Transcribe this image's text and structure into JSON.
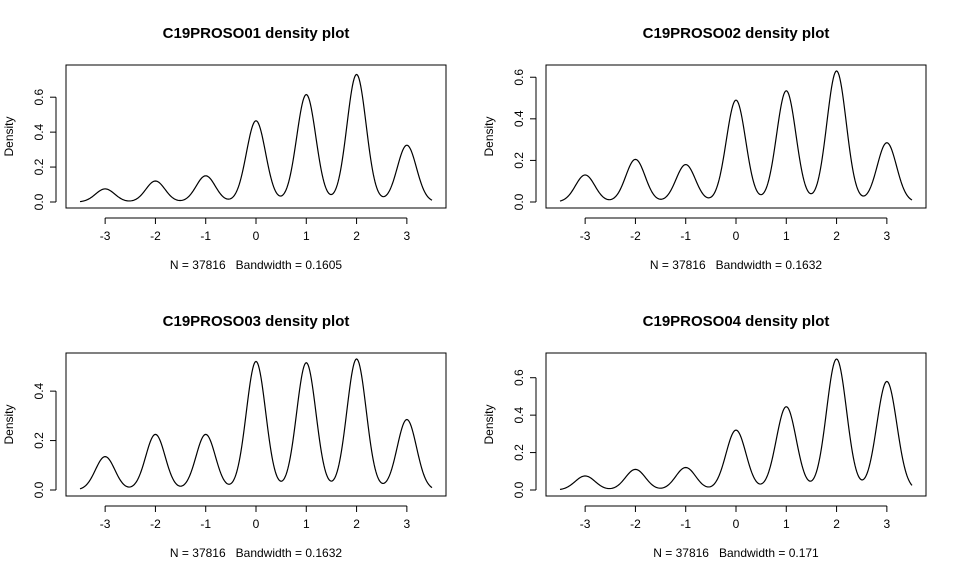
{
  "chart_data": [
    {
      "type": "line",
      "title": "C19PROSO01 density plot",
      "xlabel": "N = 37816   Bandwidth = 0.1605",
      "ylabel": "Density",
      "xlim": [
        -3.5,
        3.5
      ],
      "ylim": [
        0,
        0.75
      ],
      "xticks": [
        "-3",
        "-2",
        "-1",
        "0",
        "1",
        "2",
        "3"
      ],
      "yticks": [
        "0.0",
        "0.2",
        "0.4",
        "0.6"
      ],
      "bandwidth": 0.1605,
      "peaks": [
        {
          "x": -3,
          "y": 0.075
        },
        {
          "x": -2,
          "y": 0.12
        },
        {
          "x": -1,
          "y": 0.15
        },
        {
          "x": 0,
          "y": 0.465
        },
        {
          "x": 1,
          "y": 0.615
        },
        {
          "x": 2,
          "y": 0.73
        },
        {
          "x": 3,
          "y": 0.325
        }
      ]
    },
    {
      "type": "line",
      "title": "C19PROSO02 density plot",
      "xlabel": "N = 37816   Bandwidth = 0.1632",
      "ylabel": "Density",
      "xlim": [
        -3.5,
        3.5
      ],
      "ylim": [
        0,
        0.63
      ],
      "xticks": [
        "-3",
        "-2",
        "-1",
        "0",
        "1",
        "2",
        "3"
      ],
      "yticks": [
        "0.0",
        "0.2",
        "0.4",
        "0.6"
      ],
      "bandwidth": 0.1632,
      "peaks": [
        {
          "x": -3,
          "y": 0.13
        },
        {
          "x": -2,
          "y": 0.205
        },
        {
          "x": -1,
          "y": 0.18
        },
        {
          "x": 0,
          "y": 0.49
        },
        {
          "x": 1,
          "y": 0.535
        },
        {
          "x": 2,
          "y": 0.63
        },
        {
          "x": 3,
          "y": 0.285
        }
      ]
    },
    {
      "type": "line",
      "title": "C19PROSO03 density plot",
      "xlabel": "N = 37816   Bandwidth = 0.1632",
      "ylabel": "Density",
      "xlim": [
        -3.5,
        3.5
      ],
      "ylim": [
        0,
        0.53
      ],
      "xticks": [
        "-3",
        "-2",
        "-1",
        "0",
        "1",
        "2",
        "3"
      ],
      "yticks": [
        "0.0",
        "0.2",
        "0.4"
      ],
      "bandwidth": 0.1632,
      "peaks": [
        {
          "x": -3,
          "y": 0.135
        },
        {
          "x": -2,
          "y": 0.225
        },
        {
          "x": -1,
          "y": 0.225
        },
        {
          "x": 0,
          "y": 0.52
        },
        {
          "x": 1,
          "y": 0.515
        },
        {
          "x": 2,
          "y": 0.53
        },
        {
          "x": 3,
          "y": 0.285
        }
      ]
    },
    {
      "type": "line",
      "title": "C19PROSO04 density plot",
      "xlabel": "N = 37816   Bandwidth = 0.171",
      "ylabel": "Density",
      "xlim": [
        -3.5,
        3.5
      ],
      "ylim": [
        0,
        0.7
      ],
      "xticks": [
        "-3",
        "-2",
        "-1",
        "0",
        "1",
        "2",
        "3"
      ],
      "yticks": [
        "0.0",
        "0.2",
        "0.4",
        "0.6"
      ],
      "bandwidth": 0.171,
      "peaks": [
        {
          "x": -3,
          "y": 0.075
        },
        {
          "x": -2,
          "y": 0.11
        },
        {
          "x": -1,
          "y": 0.12
        },
        {
          "x": 0,
          "y": 0.32
        },
        {
          "x": 1,
          "y": 0.445
        },
        {
          "x": 2,
          "y": 0.7
        },
        {
          "x": 3,
          "y": 0.58
        }
      ]
    }
  ]
}
